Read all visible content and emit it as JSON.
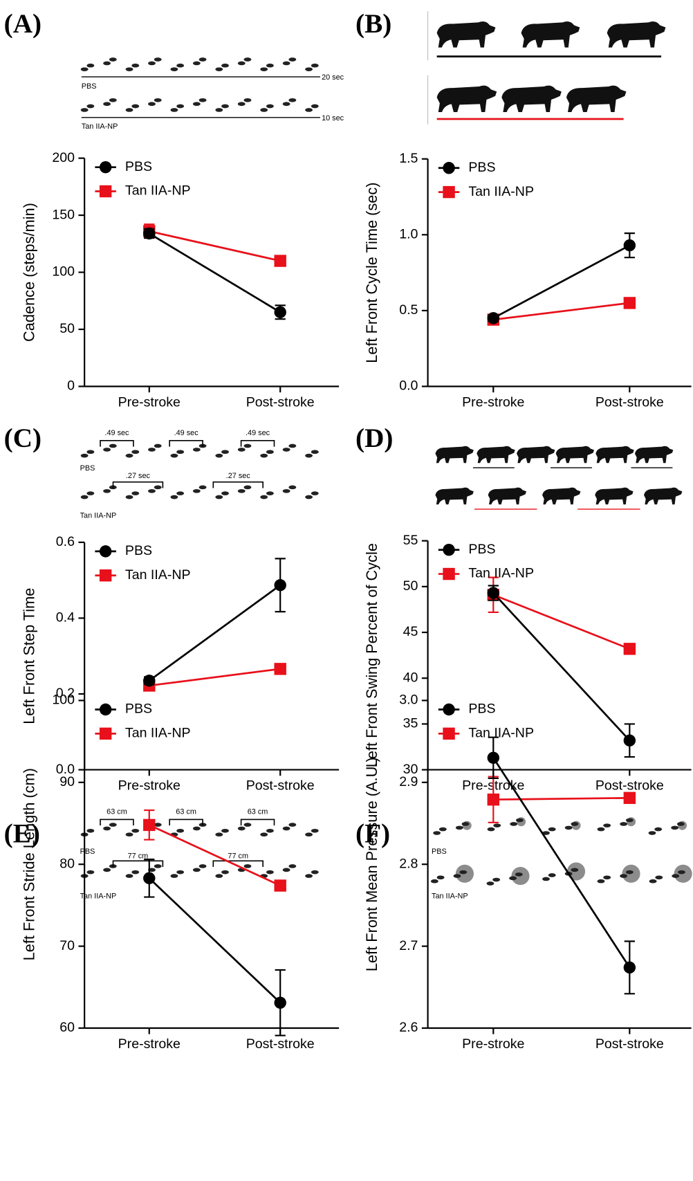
{
  "chart_data": [
    {
      "type": "line",
      "panel": "(A)",
      "ylabel": "Cadence  (steps/min)",
      "categories": [
        "Pre-stroke",
        "Post-stroke"
      ],
      "ylim": [
        0,
        200
      ],
      "yticks": [
        0,
        50,
        100,
        150,
        200
      ],
      "annotations": [
        "PBS",
        "20 sec",
        "Tan IIA-NP",
        "10 sec"
      ],
      "series": [
        {
          "name": "PBS",
          "color": "#000000",
          "marker": "circle",
          "values": [
            134,
            65
          ],
          "errors": [
            4,
            6
          ]
        },
        {
          "name": "Tan IIA-NP",
          "color": "#e8101a",
          "marker": "square",
          "values": [
            136,
            110
          ],
          "errors": [
            6,
            2
          ]
        }
      ]
    },
    {
      "type": "line",
      "panel": "(B)",
      "ylabel": "Left  Front Cycle Time (sec)",
      "categories": [
        "Pre-stroke",
        "Post-stroke"
      ],
      "ylim": [
        0,
        1.5
      ],
      "yticks": [
        {
          "value": 0,
          "label": "0.0"
        },
        0.5,
        {
          "value": 1,
          "label": "1.0"
        },
        1.5
      ],
      "annotations": [],
      "series": [
        {
          "name": "PBS",
          "color": "#000000",
          "marker": "circle",
          "values": [
            0.45,
            0.93
          ],
          "errors": [
            0.02,
            0.08
          ]
        },
        {
          "name": "Tan IIA-NP",
          "color": "#e8101a",
          "marker": "square",
          "values": [
            0.44,
            0.55
          ],
          "errors": [
            0.02,
            0.02
          ]
        }
      ]
    },
    {
      "type": "line",
      "panel": "(C)",
      "ylabel": "Left  Front  Step  Time",
      "categories": [
        "Pre-stroke",
        "Post-stroke"
      ],
      "ylim": [
        0,
        0.6
      ],
      "yticks": [
        {
          "value": 0,
          "label": "0.0"
        },
        0.2,
        0.4,
        0.6
      ],
      "annotations": [
        ".49 sec",
        ".49 sec",
        ".49 sec",
        "PBS",
        ".27 sec",
        ".27 sec",
        "Tan IIA-NP"
      ],
      "series": [
        {
          "name": "PBS",
          "color": "#000000",
          "marker": "circle",
          "values": [
            0.235,
            0.487
          ],
          "errors": [
            0.01,
            0.07
          ]
        },
        {
          "name": "Tan IIA-NP",
          "color": "#e8101a",
          "marker": "square",
          "values": [
            0.222,
            0.266
          ],
          "errors": [
            0.01,
            0.01
          ]
        }
      ]
    },
    {
      "type": "line",
      "panel": "(D)",
      "ylabel": "Left  Front  Swing Percent of  Cycle",
      "categories": [
        "Pre-stroke",
        "Post-stroke"
      ],
      "ylim": [
        30,
        55
      ],
      "yticks": [
        30,
        35,
        40,
        45,
        50,
        55
      ],
      "annotations": [],
      "series": [
        {
          "name": "PBS",
          "color": "#000000",
          "marker": "circle",
          "values": [
            49.3,
            33.2
          ],
          "errors": [
            0.8,
            1.8
          ]
        },
        {
          "name": "Tan IIA-NP",
          "color": "#e8101a",
          "marker": "square",
          "values": [
            49.1,
            43.2
          ],
          "errors": [
            1.9,
            0.3
          ]
        }
      ]
    },
    {
      "type": "line",
      "panel": "(E)",
      "ylabel": "Left  Front Stride Length  (cm)",
      "categories": [
        "Pre-stroke",
        "Post-stroke"
      ],
      "ylim": [
        60,
        100
      ],
      "yticks": [
        60,
        70,
        80,
        90,
        100
      ],
      "annotations": [
        "63 cm",
        "63 cm",
        "63 cm",
        "PBS",
        "77 cm",
        "77 cm",
        "Tan IIA-NP"
      ],
      "series": [
        {
          "name": "PBS",
          "color": "#000000",
          "marker": "circle",
          "values": [
            78.3,
            63.1
          ],
          "errors": [
            2.3,
            4
          ]
        },
        {
          "name": "Tan IIA-NP",
          "color": "#e8101a",
          "marker": "square",
          "values": [
            84.8,
            77.4
          ],
          "errors": [
            1.8,
            0.5
          ]
        }
      ]
    },
    {
      "type": "line",
      "panel": "(F)",
      "ylabel": "Left  Front Mean Pressure (A.U.)",
      "categories": [
        "Pre-stroke",
        "Post-stroke"
      ],
      "ylim": [
        2.6,
        3.0
      ],
      "yticks": [
        2.6,
        2.7,
        2.8,
        2.9,
        {
          "value": 3,
          "label": "3.0"
        }
      ],
      "annotations": [
        "PBS",
        "Tan IIA-NP"
      ],
      "series": [
        {
          "name": "PBS",
          "color": "#000000",
          "marker": "circle",
          "values": [
            2.93,
            2.674
          ],
          "errors": [
            0.025,
            0.032
          ]
        },
        {
          "name": "Tan IIA-NP",
          "color": "#e8101a",
          "marker": "square",
          "values": [
            2.879,
            2.881
          ],
          "errors": [
            0.028,
            0.005
          ]
        }
      ]
    }
  ]
}
